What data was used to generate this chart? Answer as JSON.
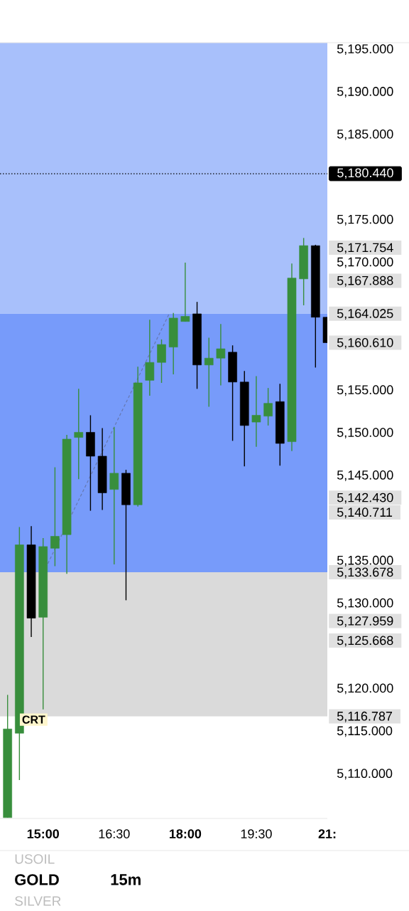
{
  "chart_data": {
    "type": "candlestick",
    "title": "GOLD",
    "subtitle": "15m",
    "x": [
      14.25,
      14.5,
      14.75,
      15.0,
      15.25,
      15.5,
      15.75,
      16.0,
      16.25,
      16.5,
      16.75,
      17.0,
      17.25,
      17.5,
      17.75,
      18.0,
      18.25,
      18.5,
      18.75,
      19.0,
      19.25,
      19.5,
      19.75,
      20.0,
      20.25,
      20.5,
      20.75,
      21.0
    ],
    "ohlc": [
      [
        5104.9,
        5119.3,
        5104.9,
        5115.3
      ],
      [
        5114.8,
        5139.0,
        5109.3,
        5136.9
      ],
      [
        5136.9,
        5139.1,
        5126.1,
        5128.3
      ],
      [
        5128.4,
        5137.7,
        5117.6,
        5136.7
      ],
      [
        5136.5,
        5146.0,
        5134.4,
        5137.9
      ],
      [
        5138.1,
        5149.8,
        5133.5,
        5149.3
      ],
      [
        5149.5,
        5155.2,
        5144.6,
        5150.1
      ],
      [
        5150.1,
        5152.1,
        5140.9,
        5147.3
      ],
      [
        5147.3,
        5150.6,
        5141.0,
        5143.0
      ],
      [
        5143.4,
        5150.7,
        5134.6,
        5145.3
      ],
      [
        5145.3,
        5145.7,
        5130.4,
        5141.6
      ],
      [
        5141.6,
        5157.8,
        5141.4,
        5155.9
      ],
      [
        5156.2,
        5163.3,
        5154.4,
        5158.3
      ],
      [
        5158.3,
        5161.0,
        5155.9,
        5160.4
      ],
      [
        5160.1,
        5164.1,
        5156.9,
        5163.5
      ],
      [
        5163.1,
        5170.0,
        5163.1,
        5163.7
      ],
      [
        5164.0,
        5165.4,
        5155.2,
        5158.0
      ],
      [
        5158.0,
        5161.2,
        5153.1,
        5158.8
      ],
      [
        5158.8,
        5162.8,
        5155.6,
        5159.9
      ],
      [
        5159.5,
        5160.3,
        5149.1,
        5156.0
      ],
      [
        5156.0,
        5157.3,
        5146.1,
        5150.9
      ],
      [
        5151.3,
        5156.7,
        5148.4,
        5152.1
      ],
      [
        5152.0,
        5155.3,
        5150.9,
        5153.5
      ],
      [
        5153.7,
        5155.8,
        5146.2,
        5148.8
      ],
      [
        5149.0,
        5169.9,
        5147.9,
        5168.2
      ],
      [
        5168.1,
        5172.9,
        5165.0,
        5172.0
      ],
      [
        5172.0,
        5172.1,
        5157.7,
        5163.6
      ],
      [
        5163.6,
        5163.6,
        5160.61,
        5160.61
      ]
    ],
    "colors": [
      "#388e3c",
      "#388e3c",
      "#000000",
      "#388e3c",
      "#388e3c",
      "#388e3c",
      "#388e3c",
      "#000000",
      "#000000",
      "#388e3c",
      "#000000",
      "#388e3c",
      "#388e3c",
      "#388e3c",
      "#388e3c",
      "#388e3c",
      "#000000",
      "#388e3c",
      "#388e3c",
      "#000000",
      "#000000",
      "#388e3c",
      "#388e3c",
      "#000000",
      "#388e3c",
      "#388e3c",
      "#000000",
      "#000000"
    ],
    "series": [
      {
        "type": "line",
        "x": [
          15.1,
          17.66
        ],
        "values": [
          5134.7,
          5164.0
        ],
        "color": "#6678b0",
        "line_style": "dashed"
      }
    ],
    "xlim": [
      14.09,
      21.0
    ],
    "xticks": [
      {
        "value": 15,
        "label": "15:00"
      },
      {
        "value": 16.5,
        "label": "16:30"
      },
      {
        "value": 18,
        "label": "18:00"
      },
      {
        "value": 19.5,
        "label": "19:30"
      },
      {
        "value": 21,
        "label": "21:"
      }
    ],
    "ylim": [
      5104.8,
      5195.8
    ],
    "yticks": [
      {
        "value": 5110,
        "label": "5,110.000"
      },
      {
        "value": 5115,
        "label": "5,115.000"
      },
      {
        "value": 5116.787,
        "label": "5,116.787"
      },
      {
        "value": 5120,
        "label": "5,120.000"
      },
      {
        "value": 5125.668,
        "label": "5,125.668"
      },
      {
        "value": 5127.959,
        "label": "5,127.959"
      },
      {
        "value": 5130,
        "label": "5,130.000"
      },
      {
        "value": 5133.678,
        "label": "5,133.678"
      },
      {
        "value": 5135,
        "label": "5,135.000"
      },
      {
        "value": 5140.711,
        "label": "5,140.711"
      },
      {
        "value": 5142.43,
        "label": "5,142.430"
      },
      {
        "value": 5145,
        "label": "5,145.000"
      },
      {
        "value": 5150,
        "label": "5,150.000"
      },
      {
        "value": 5155,
        "label": "5,155.000"
      },
      {
        "value": 5160.61,
        "label": "5,160.610"
      },
      {
        "value": 5164.025,
        "label": "5,164.025"
      },
      {
        "value": 5167.888,
        "label": "5,167.888"
      },
      {
        "value": 5170,
        "label": "5,170.000"
      },
      {
        "value": 5171.754,
        "label": "5,171.754"
      },
      {
        "value": 5175,
        "label": "5,175.000"
      },
      {
        "value": 5185,
        "label": "5,185.000"
      },
      {
        "value": 5190,
        "label": "5,190.000"
      },
      {
        "value": 5195,
        "label": "5,195.000"
      }
    ],
    "bands": [
      {
        "axis": "y",
        "from": 5164.025,
        "to": 5195.8,
        "color": "#a8c0fb"
      },
      {
        "axis": "y",
        "from": 5133.678,
        "to": 5164.025,
        "color": "#779bfa"
      },
      {
        "axis": "y",
        "from": 5116.787,
        "to": 5133.678,
        "color": "#dadada"
      }
    ],
    "ref_lines": [
      {
        "axis": "y",
        "value": 5180.44,
        "label": "5,180.440",
        "color": "#000000",
        "line_style": "dotted"
      }
    ],
    "annotations": [
      {
        "text": "CRT",
        "x": 14.8,
        "y": 5116.4
      },
      "USOIL",
      "SILVER"
    ]
  }
}
